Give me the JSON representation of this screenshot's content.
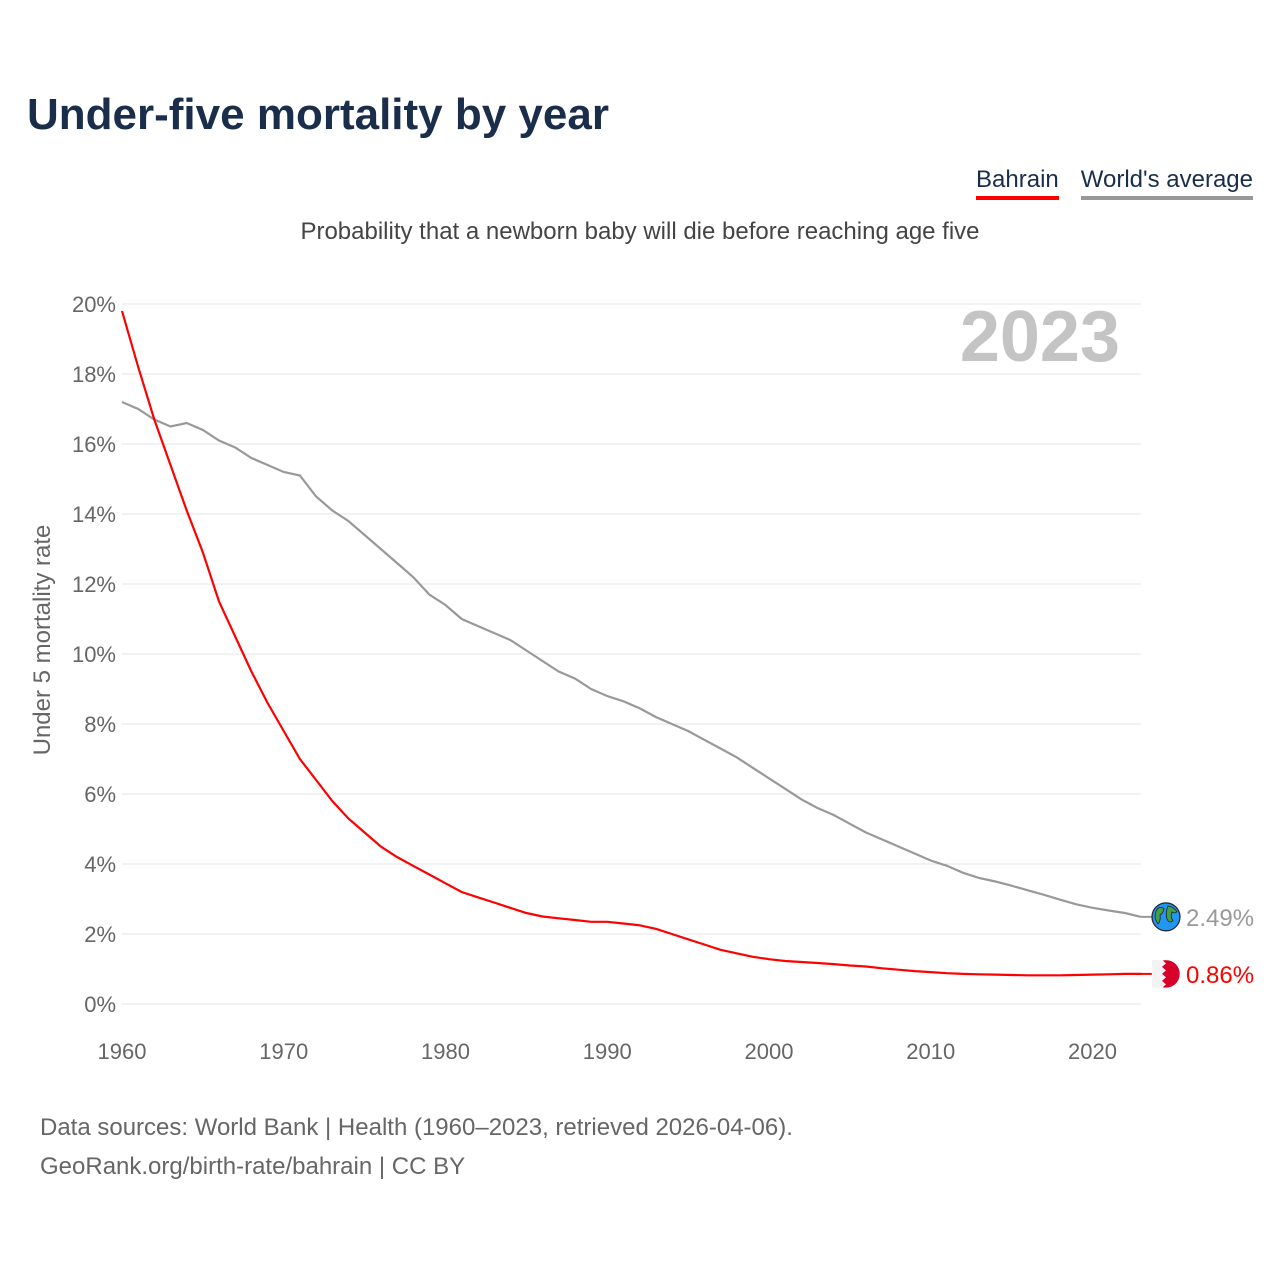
{
  "title": "Under-five mortality by year",
  "legend": {
    "bahrain": "Bahrain",
    "world": "World's average"
  },
  "subtitle": "Probability that a newborn baby will die before reaching age five",
  "year_label": "2023",
  "sources": {
    "line1": "Data sources: World Bank | Health (1960–2023, retrieved 2026-04-06).",
    "line2": "GeoRank.org/birth-rate/bahrain | CC BY"
  },
  "colors": {
    "bahrain": "#ff0000",
    "world": "#999999"
  },
  "chart_data": {
    "type": "line",
    "title": "Under-five mortality by year",
    "xlabel": "",
    "ylabel": "Under 5 mortality rate",
    "xlim": [
      1960,
      2023
    ],
    "ylim": [
      0,
      20
    ],
    "grid": true,
    "legend_position": "top-right",
    "xticks": [
      "1960",
      "1970",
      "1980",
      "1990",
      "2000",
      "2010",
      "2020"
    ],
    "yticks": [
      "0%",
      "2%",
      "4%",
      "6%",
      "8%",
      "10%",
      "12%",
      "14%",
      "16%",
      "18%",
      "20%"
    ],
    "x_start": 1960,
    "series": [
      {
        "name": "Bahrain",
        "end_label": "0.86%",
        "icon": "bahrain-flag-icon",
        "values": [
          19.8,
          18.2,
          16.7,
          15.4,
          14.1,
          12.9,
          11.5,
          10.5,
          9.5,
          8.6,
          7.8,
          7.0,
          6.4,
          5.8,
          5.3,
          4.9,
          4.5,
          4.2,
          3.95,
          3.7,
          3.45,
          3.2,
          3.05,
          2.9,
          2.75,
          2.6,
          2.5,
          2.45,
          2.4,
          2.35,
          2.35,
          2.3,
          2.25,
          2.15,
          2.0,
          1.85,
          1.7,
          1.55,
          1.45,
          1.35,
          1.28,
          1.23,
          1.2,
          1.17,
          1.14,
          1.1,
          1.07,
          1.02,
          0.98,
          0.94,
          0.91,
          0.88,
          0.86,
          0.85,
          0.84,
          0.83,
          0.82,
          0.82,
          0.82,
          0.83,
          0.84,
          0.85,
          0.86,
          0.86
        ]
      },
      {
        "name": "World's average",
        "end_label": "2.49%",
        "icon": "globe-icon",
        "values": [
          17.2,
          17.0,
          16.7,
          16.5,
          16.6,
          16.4,
          16.1,
          15.9,
          15.6,
          15.4,
          15.2,
          15.1,
          14.5,
          14.1,
          13.8,
          13.4,
          13.0,
          12.6,
          12.2,
          11.7,
          11.4,
          11.0,
          10.8,
          10.6,
          10.4,
          10.1,
          9.8,
          9.5,
          9.3,
          9.0,
          8.8,
          8.65,
          8.45,
          8.2,
          8.0,
          7.8,
          7.55,
          7.3,
          7.05,
          6.75,
          6.45,
          6.15,
          5.85,
          5.6,
          5.4,
          5.15,
          4.9,
          4.7,
          4.5,
          4.3,
          4.1,
          3.95,
          3.75,
          3.6,
          3.5,
          3.38,
          3.25,
          3.12,
          2.98,
          2.85,
          2.75,
          2.67,
          2.6,
          2.49
        ]
      }
    ]
  }
}
